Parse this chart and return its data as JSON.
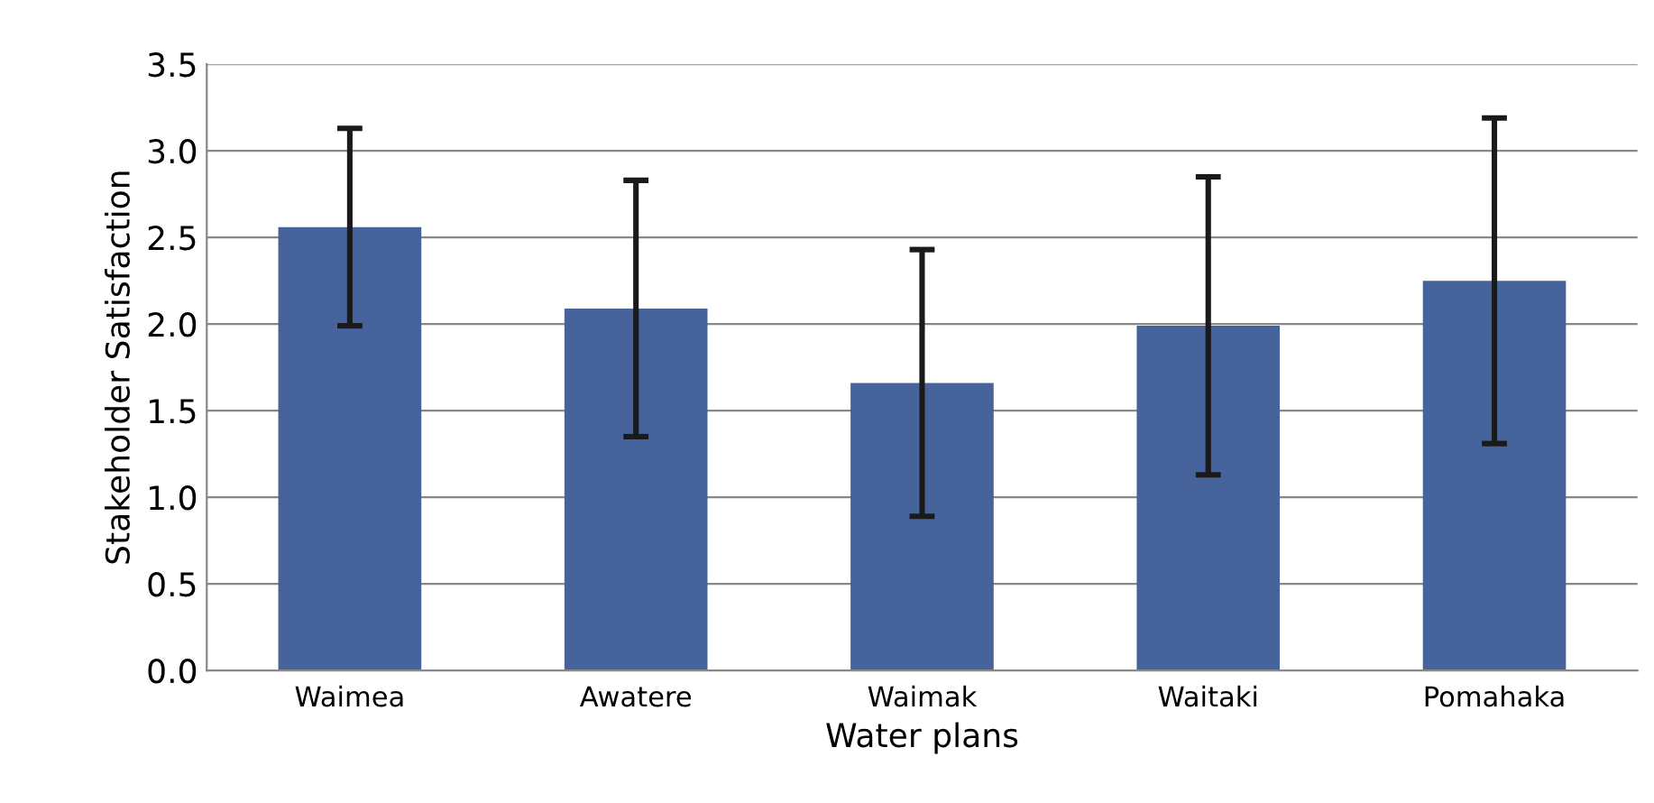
{
  "chart_data": {
    "type": "bar",
    "xlabel": "Water plans",
    "ylabel": "Stakeholder Satisfaction",
    "categories": [
      "Waimea",
      "Awatere",
      "Waimak",
      "Waitaki",
      "Pomahaka"
    ],
    "values": [
      2.56,
      2.09,
      1.66,
      1.99,
      2.25
    ],
    "errors": [
      0.57,
      0.74,
      0.77,
      0.86,
      0.94
    ],
    "color": "#46639c",
    "ylim": [
      0,
      3.5
    ],
    "yticks": [
      {
        "value": 0,
        "label": "0.0"
      },
      0.5,
      {
        "value": 1,
        "label": "1.0"
      },
      1.5,
      {
        "value": 2,
        "label": "2.0"
      },
      2.5,
      {
        "value": 3,
        "label": "3.0"
      },
      3.5
    ],
    "grid": "y"
  }
}
